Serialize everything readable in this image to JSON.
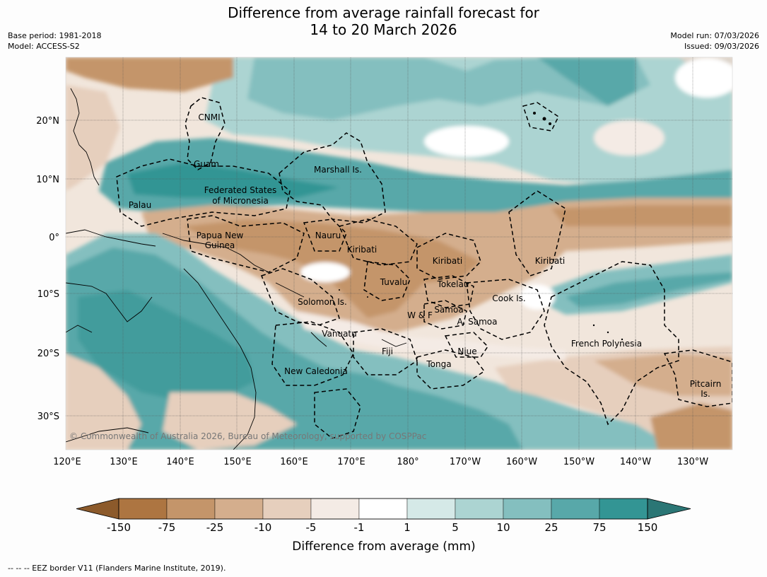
{
  "title": {
    "line1": "Difference from average rainfall forecast for",
    "line2": "14 to 20 March 2026"
  },
  "meta": {
    "base_period": "Base period: 1981-2018",
    "model": "Model: ACCESS-S2",
    "model_run": "Model run: 07/03/2026",
    "issued": "Issued: 09/03/2026"
  },
  "map": {
    "lon_labels": [
      "120°E",
      "130°E",
      "140°E",
      "150°E",
      "160°E",
      "170°E",
      "180°",
      "170°W",
      "160°W",
      "150°W",
      "140°W",
      "130°W"
    ],
    "lat_labels": [
      "20°N",
      "10°N",
      "0°",
      "10°S",
      "20°S",
      "30°S"
    ],
    "copyright": "© Commonwealth of Australia 2026, Bureau of Meteorology, supported by COSPPac",
    "region_labels": [
      "CNMI",
      "Guam",
      "Marshall Is.",
      "Federated States",
      "of Micronesia",
      "Palau",
      "Papua New",
      "Guinea",
      "Nauru",
      "Kiribati",
      "Kiribati",
      "Kiribati",
      "Tuvalu",
      "Tokelau",
      "Solomon Is.",
      "Samoa",
      "W & F",
      "A. Samoa",
      "Cook Is.",
      "Vanuatu",
      "Fiji",
      "Niue",
      "French Polynesia",
      "Tonga",
      "New Caledonia",
      "Pitcairn",
      "Is."
    ]
  },
  "colorbar": {
    "tick_labels": [
      "-150",
      "-75",
      "-25",
      "-10",
      "-5",
      "-1",
      "1",
      "5",
      "10",
      "25",
      "75",
      "150"
    ],
    "label": "Difference from average (mm)",
    "colors": [
      "#8c5a2b",
      "#ad7541",
      "#c4956a",
      "#d4ae8d",
      "#e6cfbd",
      "#f4ebe5",
      "#ffffff",
      "#d5e9e7",
      "#acd4d2",
      "#84bfbf",
      "#58a8a9",
      "#339594",
      "#2b7675"
    ]
  },
  "footer": "--  --  -- EEZ border V11 (Flanders Marine Institute, 2019)."
}
